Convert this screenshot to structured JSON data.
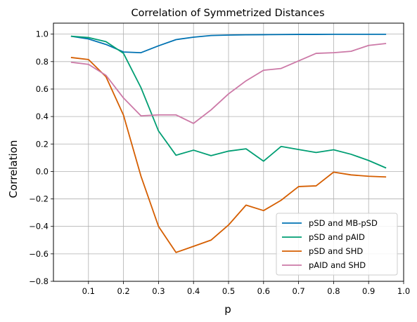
{
  "chart_data": {
    "type": "line",
    "title": "Correlation of Symmetrized Distances",
    "xlabel": "p",
    "ylabel": "Correlation",
    "xlim": [
      0.0,
      1.0
    ],
    "ylim": [
      -0.8,
      1.08
    ],
    "xticks": [
      0.1,
      0.2,
      0.3,
      0.4,
      0.5,
      0.6,
      0.7,
      0.8,
      0.9,
      1.0
    ],
    "xtick_labels": [
      "0.1",
      "0.2",
      "0.3",
      "0.4",
      "0.5",
      "0.6",
      "0.7",
      "0.8",
      "0.9",
      "1.0"
    ],
    "yticks": [
      -0.8,
      -0.6,
      -0.4,
      -0.2,
      0.0,
      0.2,
      0.4,
      0.6,
      0.8,
      1.0
    ],
    "ytick_labels": [
      "−0.8",
      "−0.6",
      "−0.4",
      "−0.2",
      "0.0",
      "0.2",
      "0.4",
      "0.6",
      "0.8",
      "1.0"
    ],
    "grid": true,
    "legend_position": "bottom-right",
    "x": [
      0.05,
      0.1,
      0.15,
      0.2,
      0.25,
      0.3,
      0.35,
      0.4,
      0.45,
      0.5,
      0.55,
      0.6,
      0.65,
      0.7,
      0.75,
      0.8,
      0.85,
      0.9,
      0.95
    ],
    "series": [
      {
        "name": "pSD and MB-pSD",
        "color": "#0072b2",
        "values": [
          0.985,
          0.965,
          0.925,
          0.87,
          0.865,
          0.915,
          0.96,
          0.978,
          0.99,
          0.993,
          0.995,
          0.996,
          0.997,
          0.998,
          0.998,
          0.999,
          0.999,
          0.999,
          0.999
        ]
      },
      {
        "name": "pSD and pAID",
        "color": "#009e73",
        "values": [
          0.985,
          0.975,
          0.945,
          0.86,
          0.61,
          0.295,
          0.118,
          0.155,
          0.115,
          0.148,
          0.165,
          0.075,
          0.182,
          0.16,
          0.138,
          0.158,
          0.125,
          0.08,
          0.025
        ]
      },
      {
        "name": "pSD and SHD",
        "color": "#d55e00",
        "values": [
          0.83,
          0.815,
          0.69,
          0.41,
          -0.035,
          -0.4,
          -0.59,
          -0.545,
          -0.5,
          -0.39,
          -0.245,
          -0.285,
          -0.21,
          -0.11,
          -0.105,
          -0.005,
          -0.025,
          -0.035,
          -0.04
        ]
      },
      {
        "name": "pAID and SHD",
        "color": "#cc79a7",
        "values": [
          0.795,
          0.78,
          0.7,
          0.535,
          0.405,
          0.412,
          0.412,
          0.35,
          0.448,
          0.565,
          0.66,
          0.737,
          0.75,
          0.805,
          0.86,
          0.865,
          0.875,
          0.918,
          0.932
        ]
      }
    ]
  }
}
